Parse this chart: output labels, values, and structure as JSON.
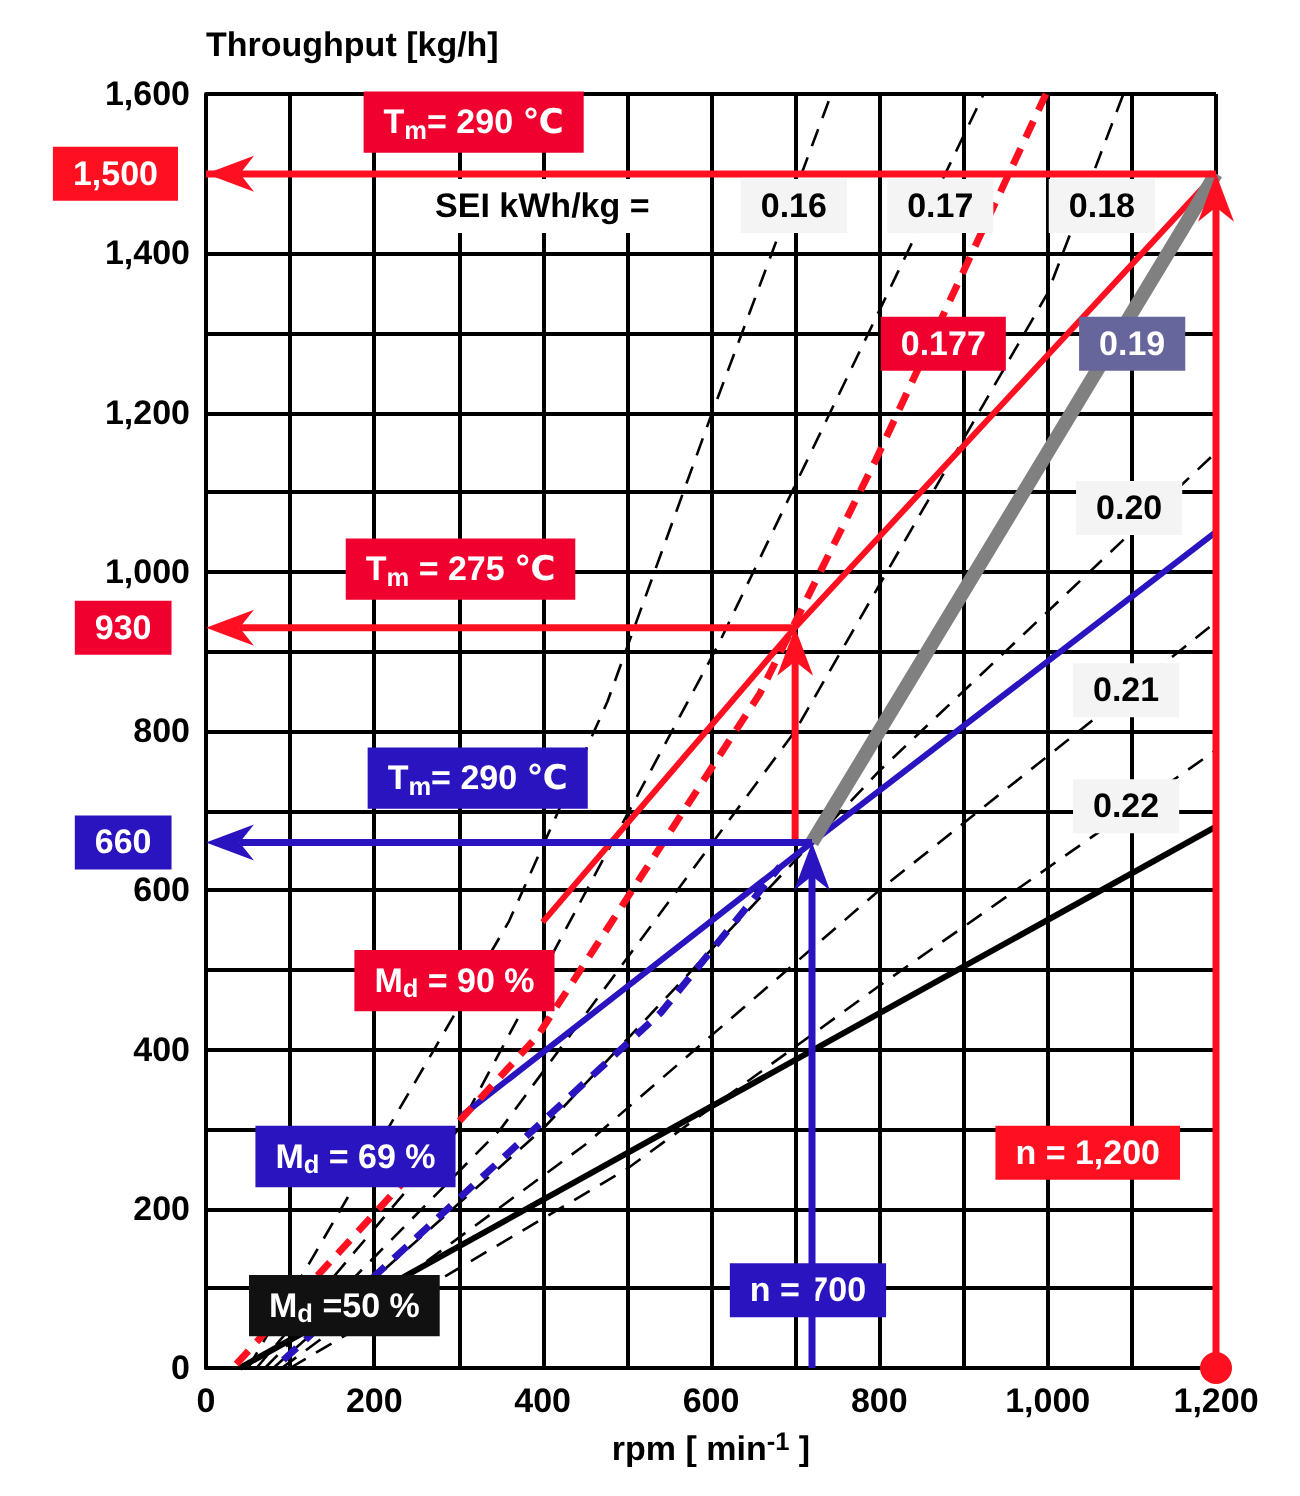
{
  "chart_data": {
    "type": "line",
    "xlabel": "rpm [ min$^{-1}$ ]",
    "ylabel": "Throughput [kg/h]",
    "xlim": [
      0,
      1200
    ],
    "ylim": [
      0,
      1600
    ],
    "xticks": [
      0,
      {
        "value": 100,
        "label": null
      },
      200,
      {
        "value": 300,
        "label": null
      },
      400,
      {
        "value": 500,
        "label": null
      },
      600,
      {
        "value": 700,
        "label": null
      },
      800,
      {
        "value": 900,
        "label": null
      },
      {
        "value": 1000,
        "label": "1,000"
      },
      {
        "value": 1100,
        "label": null
      },
      {
        "value": 1200,
        "label": "1,200"
      }
    ],
    "yticks": [
      0,
      {
        "value": 100,
        "label": null
      },
      200,
      {
        "value": 300,
        "label": null
      },
      400,
      {
        "value": 500,
        "label": null
      },
      600,
      {
        "value": 700,
        "label": null
      },
      800,
      {
        "value": 900,
        "label": null
      },
      {
        "value": 1000,
        "label": "1,000"
      },
      {
        "value": 1100,
        "label": null
      },
      {
        "value": 1200,
        "label": "1,200"
      },
      {
        "value": 1300,
        "label": null
      },
      {
        "value": 1400,
        "label": "1,400"
      },
      {
        "value": 1500,
        "label": null
      },
      {
        "value": 1600,
        "label": "1,600"
      }
    ],
    "grid": true,
    "marker": "none",
    "ref_lines": [
      {
        "axis": "y",
        "value": 1500,
        "label": "1,500",
        "color": "#ff1020"
      }
    ],
    "series": [
      {
        "color": "#000000",
        "line_style": "dashed",
        "x": [
          50,
          360,
          477,
          599,
          743
        ],
        "values": [
          0,
          561,
          837,
          1193,
          1600
        ]
      },
      {
        "color": "#000000",
        "line_style": "dashed",
        "x": [
          60,
          300,
          608,
          805,
          924
        ],
        "values": [
          0,
          300,
          907,
          1339,
          1600
        ]
      },
      {
        "color": "#000000",
        "line_style": "dashed",
        "x": [
          70,
          350,
          700,
          1000,
          1090
        ],
        "values": [
          0,
          300,
          800,
          1350,
          1600
        ]
      },
      {
        "color": "#000000",
        "line_style": "dashed",
        "x": [
          80,
          400,
          800,
          1200
        ],
        "values": [
          0,
          300,
          750,
          1150
        ]
      },
      {
        "color": "#000000",
        "line_style": "dashed",
        "x": [
          90,
          450,
          800,
          1200
        ],
        "values": [
          0,
          280,
          600,
          937
        ]
      },
      {
        "color": "#000000",
        "line_style": "dashed",
        "x": [
          100,
          500,
          800,
          1200
        ],
        "values": [
          0,
          250,
          480,
          776
        ]
      },
      {
        "color": "#000000",
        "line_style": "solid",
        "x": [
          40,
          1200
        ],
        "values": [
          0,
          680
        ]
      },
      {
        "color": "#2a14c0",
        "line_style": "dashed",
        "x": [
          92,
          541,
          682
        ],
        "values": [
          10,
          447,
          630
        ]
      },
      {
        "color": "#2a14c0",
        "line_style": "solid",
        "x": [
          304,
          720,
          1200
        ],
        "values": [
          317,
          660,
          1050
        ]
      },
      {
        "color": "#ff1020",
        "line_style": "dashed",
        "x": [
          36,
          394,
          658,
          796,
          998
        ],
        "values": [
          5,
          417,
          847,
          1141,
          1600
        ]
      },
      {
        "color": "#ff1020",
        "line_style": "solid",
        "x": [
          400,
          700,
          1200
        ],
        "values": [
          560,
          930,
          1500
        ]
      },
      {
        "color": "#808080",
        "line_style": "solid",
        "x": [
          720,
          1200
        ],
        "values": [
          660,
          1500
        ]
      }
    ],
    "annotations": [
      "T$_{m}$= 290 ℃",
      "SEI kWh/kg =",
      "0.16",
      "0.17",
      "0.18",
      "0.177",
      "0.19",
      "0.20",
      "0.21",
      "0.22",
      "T$_{m}$ = 275 ℃",
      "T$_{m}$= 290 ℃",
      "M$_{d}$ = 90 %",
      "M$_{d}$ = 69 %",
      "M$_{d}$ =50 %",
      "n = 1,200",
      "n = 700",
      "930",
      "660"
    ]
  }
}
